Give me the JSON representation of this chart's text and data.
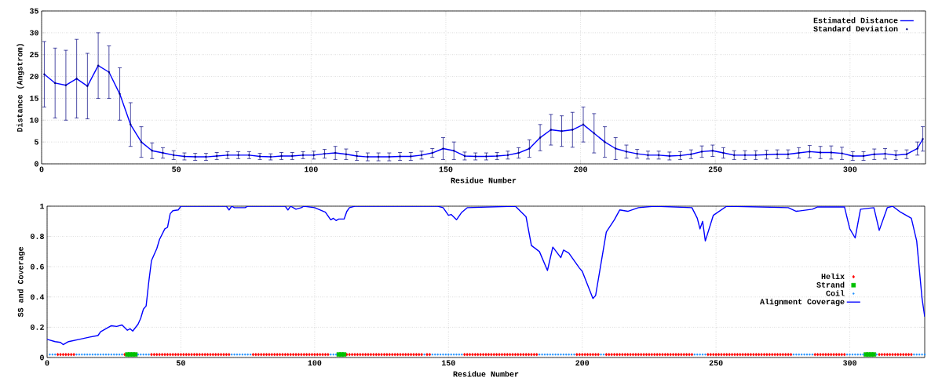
{
  "chart_data": [
    {
      "type": "line",
      "xlabel": "Residue Number",
      "ylabel": "Distance (Angstrom)",
      "xlim": [
        0,
        328
      ],
      "ylim": [
        0,
        35
      ],
      "xticks": [
        0,
        50,
        100,
        150,
        200,
        250,
        300
      ],
      "yticks": [
        0,
        5,
        10,
        15,
        20,
        25,
        30,
        35
      ],
      "grid": true,
      "legend": "top right",
      "x": [
        1,
        5,
        9,
        13,
        17,
        21,
        25,
        29,
        33,
        37,
        41,
        45,
        49,
        53,
        57,
        61,
        65,
        69,
        73,
        77,
        81,
        85,
        89,
        93,
        97,
        101,
        105,
        109,
        113,
        117,
        121,
        125,
        129,
        133,
        137,
        141,
        145,
        149,
        153,
        157,
        161,
        165,
        169,
        173,
        177,
        181,
        185,
        189,
        193,
        197,
        201,
        205,
        209,
        213,
        217,
        221,
        225,
        229,
        233,
        237,
        241,
        245,
        249,
        253,
        257,
        261,
        265,
        269,
        273,
        277,
        281,
        285,
        289,
        293,
        297,
        301,
        305,
        309,
        313,
        317,
        321,
        325,
        327
      ],
      "series": [
        {
          "name": "Estimated Distance",
          "color": "#0000ff",
          "marker": "none",
          "values": [
            20.5,
            18.5,
            18,
            19.5,
            17.8,
            22.5,
            21,
            16,
            9,
            5,
            3,
            2.5,
            2,
            1.7,
            1.6,
            1.6,
            1.8,
            2,
            2,
            2,
            1.7,
            1.6,
            1.8,
            1.8,
            2,
            2,
            2.3,
            2.5,
            2.2,
            1.8,
            1.6,
            1.6,
            1.6,
            1.7,
            1.7,
            2,
            2.5,
            3.5,
            3,
            1.8,
            1.7,
            1.7,
            1.8,
            2,
            2.5,
            3.5,
            6,
            7.8,
            7.5,
            7.8,
            9,
            7,
            5,
            3.5,
            2.8,
            2.3,
            2,
            2,
            1.8,
            1.9,
            2.2,
            2.8,
            3,
            2.5,
            2,
            2,
            2,
            2.1,
            2.2,
            2.2,
            2.5,
            2.8,
            2.6,
            2.6,
            2.4,
            1.8,
            1.8,
            2.2,
            2.3,
            2,
            2.2,
            3.5,
            5.7
          ]
        },
        {
          "name": "Standard Deviation",
          "type": "scatter",
          "color": "#000080",
          "marker": "circle",
          "values": [
            20.5,
            18.5,
            18,
            19.5,
            17.8,
            22.5,
            21,
            16,
            9,
            5,
            3,
            2.5,
            2,
            1.7,
            1.6,
            1.6,
            1.8,
            2,
            2,
            2,
            1.7,
            1.6,
            1.8,
            1.8,
            2,
            2,
            2.3,
            2.5,
            2.2,
            1.8,
            1.6,
            1.6,
            1.6,
            1.7,
            1.7,
            2,
            2.5,
            3.5,
            3,
            1.8,
            1.7,
            1.7,
            1.8,
            2,
            2.5,
            3.5,
            6,
            7.8,
            7.5,
            7.8,
            9,
            7,
            5,
            3.5,
            2.8,
            2.3,
            2,
            2,
            1.8,
            1.9,
            2.2,
            2.8,
            3,
            2.5,
            2,
            2,
            2,
            2.1,
            2.2,
            2.2,
            2.5,
            2.8,
            2.6,
            2.6,
            2.4,
            1.8,
            1.8,
            2.2,
            2.3,
            2,
            2.2,
            3.5,
            5.7
          ],
          "errors": [
            7.5,
            8,
            8,
            9,
            7.5,
            7.5,
            6,
            6,
            5,
            3.5,
            1.8,
            1.2,
            1,
            0.8,
            0.8,
            0.8,
            0.8,
            0.8,
            0.8,
            0.8,
            0.7,
            0.7,
            0.8,
            0.8,
            0.8,
            0.9,
            1,
            1.5,
            1.2,
            1,
            0.9,
            0.9,
            0.9,
            0.9,
            0.9,
            0.9,
            1,
            2.5,
            2,
            0.9,
            0.8,
            0.8,
            0.8,
            0.9,
            1.2,
            2,
            3,
            3.5,
            3.5,
            4,
            4,
            4.5,
            3.5,
            2.5,
            1.5,
            1,
            0.9,
            0.9,
            0.9,
            0.9,
            1,
            1.3,
            1.3,
            1.2,
            1,
            1,
            1,
            1,
            1,
            1,
            1.2,
            1.4,
            1.4,
            1.5,
            1.4,
            1,
            1,
            1.2,
            1.2,
            1,
            1,
            1.5,
            2.8
          ]
        }
      ]
    },
    {
      "type": "scatter",
      "xlabel": "Residue Number",
      "ylabel": "SS and Coverage",
      "xlim": [
        0,
        328
      ],
      "ylim": [
        0,
        1
      ],
      "xticks": [
        0,
        50,
        100,
        150,
        200,
        250,
        300
      ],
      "yticks": [
        0,
        0.2,
        0.4,
        0.6,
        0.8,
        1
      ],
      "grid": true,
      "legend": "right",
      "series": [
        {
          "name": "Helix",
          "color": "#ff0000",
          "marker": "diamond",
          "x": [
            4,
            5,
            6,
            7,
            8,
            9,
            10,
            29,
            39,
            40,
            41,
            42,
            43,
            44,
            45,
            46,
            47,
            48,
            49,
            50,
            51,
            52,
            53,
            54,
            55,
            56,
            57,
            58,
            59,
            60,
            61,
            62,
            63,
            64,
            65,
            66,
            67,
            68,
            77,
            78,
            79,
            80,
            81,
            82,
            83,
            84,
            85,
            86,
            87,
            88,
            89,
            90,
            91,
            92,
            93,
            94,
            95,
            96,
            97,
            98,
            99,
            100,
            101,
            102,
            103,
            104,
            105,
            112,
            113,
            114,
            115,
            116,
            117,
            118,
            119,
            120,
            121,
            122,
            123,
            124,
            125,
            126,
            127,
            128,
            129,
            130,
            131,
            132,
            133,
            134,
            135,
            136,
            137,
            138,
            139,
            140,
            142,
            143,
            156,
            157,
            158,
            159,
            160,
            161,
            162,
            163,
            164,
            165,
            166,
            167,
            168,
            169,
            170,
            171,
            172,
            173,
            174,
            175,
            176,
            177,
            178,
            179,
            180,
            181,
            182,
            183,
            198,
            199,
            200,
            201,
            202,
            203,
            204,
            205,
            206,
            209,
            210,
            211,
            212,
            213,
            214,
            215,
            216,
            217,
            218,
            219,
            220,
            221,
            222,
            223,
            224,
            225,
            226,
            227,
            228,
            229,
            230,
            231,
            232,
            233,
            234,
            235,
            236,
            237,
            238,
            239,
            240,
            241,
            247,
            248,
            249,
            250,
            251,
            252,
            253,
            254,
            255,
            256,
            257,
            258,
            259,
            260,
            261,
            262,
            263,
            264,
            265,
            266,
            267,
            268,
            269,
            270,
            271,
            272,
            273,
            274,
            275,
            276,
            277,
            278,
            287,
            288,
            289,
            290,
            291,
            292,
            293,
            294,
            295,
            296,
            297,
            298,
            311,
            312,
            313,
            314,
            315,
            316,
            317,
            318,
            319,
            320,
            321,
            322,
            323
          ],
          "values": [
            0.02,
            0.02,
            0.02,
            0.02,
            0.02,
            0.02,
            0.02,
            0.02,
            0.02,
            0.02,
            0.02,
            0.02,
            0.02,
            0.02,
            0.02,
            0.02,
            0.02,
            0.02,
            0.02,
            0.02,
            0.02,
            0.02,
            0.02,
            0.02,
            0.02,
            0.02,
            0.02,
            0.02,
            0.02,
            0.02,
            0.02,
            0.02,
            0.02,
            0.02,
            0.02,
            0.02,
            0.02,
            0.02,
            0.02,
            0.02,
            0.02,
            0.02,
            0.02,
            0.02,
            0.02,
            0.02,
            0.02,
            0.02,
            0.02,
            0.02,
            0.02,
            0.02,
            0.02,
            0.02,
            0.02,
            0.02,
            0.02,
            0.02,
            0.02,
            0.02,
            0.02,
            0.02,
            0.02,
            0.02,
            0.02,
            0.02,
            0.02,
            0.02,
            0.02,
            0.02,
            0.02,
            0.02,
            0.02,
            0.02,
            0.02,
            0.02,
            0.02,
            0.02,
            0.02,
            0.02,
            0.02,
            0.02,
            0.02,
            0.02,
            0.02,
            0.02,
            0.02,
            0.02,
            0.02,
            0.02,
            0.02,
            0.02,
            0.02,
            0.02,
            0.02,
            0.02,
            0.02,
            0.02,
            0.02,
            0.02,
            0.02,
            0.02,
            0.02,
            0.02,
            0.02,
            0.02,
            0.02,
            0.02,
            0.02,
            0.02,
            0.02,
            0.02,
            0.02,
            0.02,
            0.02,
            0.02,
            0.02,
            0.02,
            0.02,
            0.02,
            0.02,
            0.02,
            0.02,
            0.02,
            0.02,
            0.02,
            0.02,
            0.02,
            0.02,
            0.02,
            0.02,
            0.02,
            0.02,
            0.02,
            0.02,
            0.02,
            0.02,
            0.02,
            0.02,
            0.02,
            0.02,
            0.02,
            0.02,
            0.02,
            0.02,
            0.02,
            0.02,
            0.02,
            0.02,
            0.02,
            0.02,
            0.02,
            0.02,
            0.02,
            0.02,
            0.02,
            0.02,
            0.02,
            0.02,
            0.02,
            0.02,
            0.02,
            0.02,
            0.02,
            0.02,
            0.02,
            0.02,
            0.02,
            0.02,
            0.02,
            0.02,
            0.02,
            0.02,
            0.02,
            0.02,
            0.02,
            0.02,
            0.02,
            0.02,
            0.02,
            0.02,
            0.02,
            0.02,
            0.02,
            0.02,
            0.02,
            0.02,
            0.02,
            0.02,
            0.02,
            0.02,
            0.02,
            0.02,
            0.02,
            0.02,
            0.02,
            0.02,
            0.02,
            0.02,
            0.02,
            0.02,
            0.02,
            0.02,
            0.02,
            0.02,
            0.02,
            0.02,
            0.02,
            0.02,
            0.02,
            0.02,
            0.02,
            0.02,
            0.02,
            0.02,
            0.02,
            0.02,
            0.02,
            0.02,
            0.02,
            0.02,
            0.02,
            0.02,
            0.02,
            0.02
          ]
        },
        {
          "name": "Strand",
          "color": "#00c000",
          "marker": "square",
          "x": [
            30,
            31,
            32,
            33,
            109,
            110,
            111,
            306,
            307,
            308,
            309
          ],
          "values": [
            0.02,
            0.02,
            0.02,
            0.02,
            0.02,
            0.02,
            0.02,
            0.02,
            0.02,
            0.02,
            0.02
          ]
        },
        {
          "name": "Coil",
          "color": "#1e90ff",
          "marker": "circle",
          "x": [
            1,
            2,
            3,
            11,
            12,
            13,
            14,
            15,
            16,
            17,
            18,
            19,
            20,
            21,
            22,
            23,
            24,
            25,
            26,
            27,
            28,
            34,
            35,
            36,
            37,
            38,
            69,
            70,
            71,
            72,
            73,
            74,
            75,
            76,
            106,
            107,
            108,
            141,
            144,
            145,
            146,
            147,
            148,
            149,
            150,
            151,
            152,
            153,
            154,
            155,
            184,
            185,
            186,
            187,
            188,
            189,
            190,
            191,
            192,
            193,
            194,
            195,
            196,
            197,
            207,
            208,
            242,
            243,
            244,
            245,
            246,
            279,
            280,
            281,
            282,
            283,
            284,
            285,
            286,
            299,
            300,
            301,
            302,
            303,
            304,
            305,
            310,
            324,
            325,
            326,
            327,
            328
          ],
          "values": [
            0.02,
            0.02,
            0.02,
            0.02,
            0.02,
            0.02,
            0.02,
            0.02,
            0.02,
            0.02,
            0.02,
            0.02,
            0.02,
            0.02,
            0.02,
            0.02,
            0.02,
            0.02,
            0.02,
            0.02,
            0.02,
            0.02,
            0.02,
            0.02,
            0.02,
            0.02,
            0.02,
            0.02,
            0.02,
            0.02,
            0.02,
            0.02,
            0.02,
            0.02,
            0.02,
            0.02,
            0.02,
            0.02,
            0.02,
            0.02,
            0.02,
            0.02,
            0.02,
            0.02,
            0.02,
            0.02,
            0.02,
            0.02,
            0.02,
            0.02,
            0.02,
            0.02,
            0.02,
            0.02,
            0.02,
            0.02,
            0.02,
            0.02,
            0.02,
            0.02,
            0.02,
            0.02,
            0.02,
            0.02,
            0.02,
            0.02,
            0.02,
            0.02,
            0.02,
            0.02,
            0.02,
            0.02,
            0.02,
            0.02,
            0.02,
            0.02,
            0.02,
            0.02,
            0.02,
            0.02,
            0.02,
            0.02,
            0.02,
            0.02,
            0.02,
            0.02,
            0.02,
            0.02,
            0.02,
            0.02,
            0.02,
            0.02
          ]
        },
        {
          "name": "Alignment Coverage",
          "type": "line",
          "color": "#0000ff",
          "marker": "none",
          "x": [
            0,
            3,
            5,
            6,
            8,
            12,
            16,
            19,
            20,
            24,
            26,
            28,
            30,
            31,
            32,
            34,
            35,
            36,
            37,
            38,
            39,
            41,
            42,
            44,
            45,
            46,
            47,
            49,
            50,
            67,
            68,
            69,
            70,
            74,
            75,
            89,
            90,
            91,
            93,
            95,
            96,
            100,
            104,
            106,
            107,
            108,
            109,
            111,
            112,
            113,
            115,
            146,
            148,
            150,
            151,
            153,
            155,
            157,
            175,
            179,
            181,
            184,
            187,
            189,
            192,
            193,
            195,
            199,
            200,
            204,
            205,
            209,
            212,
            214,
            217,
            221,
            227,
            241,
            243,
            244,
            245,
            246,
            249,
            254,
            277,
            280,
            286,
            288,
            298,
            300,
            302,
            304,
            309,
            311,
            314,
            316,
            319,
            323,
            325,
            327,
            328
          ],
          "values": [
            0.12,
            0.105,
            0.1,
            0.085,
            0.105,
            0.12,
            0.135,
            0.145,
            0.17,
            0.21,
            0.205,
            0.215,
            0.18,
            0.19,
            0.175,
            0.22,
            0.26,
            0.32,
            0.34,
            0.5,
            0.64,
            0.72,
            0.78,
            0.85,
            0.86,
            0.95,
            0.97,
            0.975,
            1,
            1,
            0.975,
            1,
            0.99,
            0.99,
            1,
            1,
            0.975,
            1,
            0.98,
            0.99,
            1,
            0.99,
            0.96,
            0.91,
            0.92,
            0.905,
            0.915,
            0.915,
            0.965,
            0.99,
            1,
            1,
            0.99,
            0.94,
            0.945,
            0.91,
            0.96,
            0.99,
            1,
            0.93,
            0.74,
            0.7,
            0.575,
            0.73,
            0.66,
            0.71,
            0.69,
            0.59,
            0.57,
            0.39,
            0.41,
            0.83,
            0.91,
            0.975,
            0.966,
            0.99,
            1,
            0.99,
            0.92,
            0.85,
            0.9,
            0.77,
            0.94,
            1,
            0.99,
            0.966,
            0.98,
            0.995,
            0.995,
            0.85,
            0.79,
            0.98,
            0.99,
            0.84,
            0.99,
            1,
            0.96,
            0.92,
            0.77,
            0.39,
            0.27
          ]
        }
      ]
    }
  ]
}
